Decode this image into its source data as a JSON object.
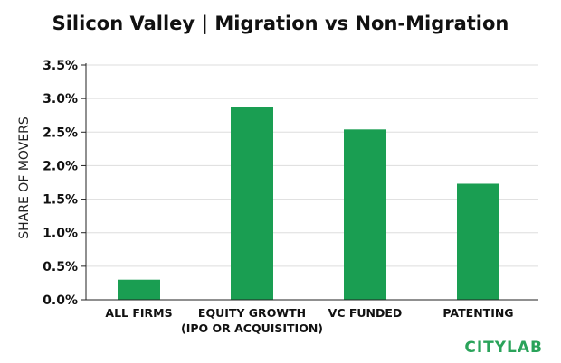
{
  "chart_data": {
    "type": "bar",
    "title": "Silicon Valley | Migration vs Non-Migration",
    "ylabel": "SHARE OF MOVERS",
    "xlabel": "",
    "categories": [
      [
        "ALL FIRMS"
      ],
      [
        "EQUITY GROWTH",
        "(IPO OR ACQUISITION)"
      ],
      [
        "VC FUNDED"
      ],
      [
        "PATENTING"
      ]
    ],
    "values": [
      0.3,
      2.87,
      2.54,
      1.73
    ],
    "ylim": [
      0,
      3.5
    ],
    "yticks": [
      "0.0%",
      "0.5%",
      "1.0%",
      "1.5%",
      "2.0%",
      "2.5%",
      "3.0%",
      "3.5%"
    ],
    "grid": true,
    "bar_color": "#1a9e52",
    "grid_color": "#dddddd"
  },
  "brand": {
    "logo_text": "CITYLAB",
    "color": "#2aa35a"
  }
}
